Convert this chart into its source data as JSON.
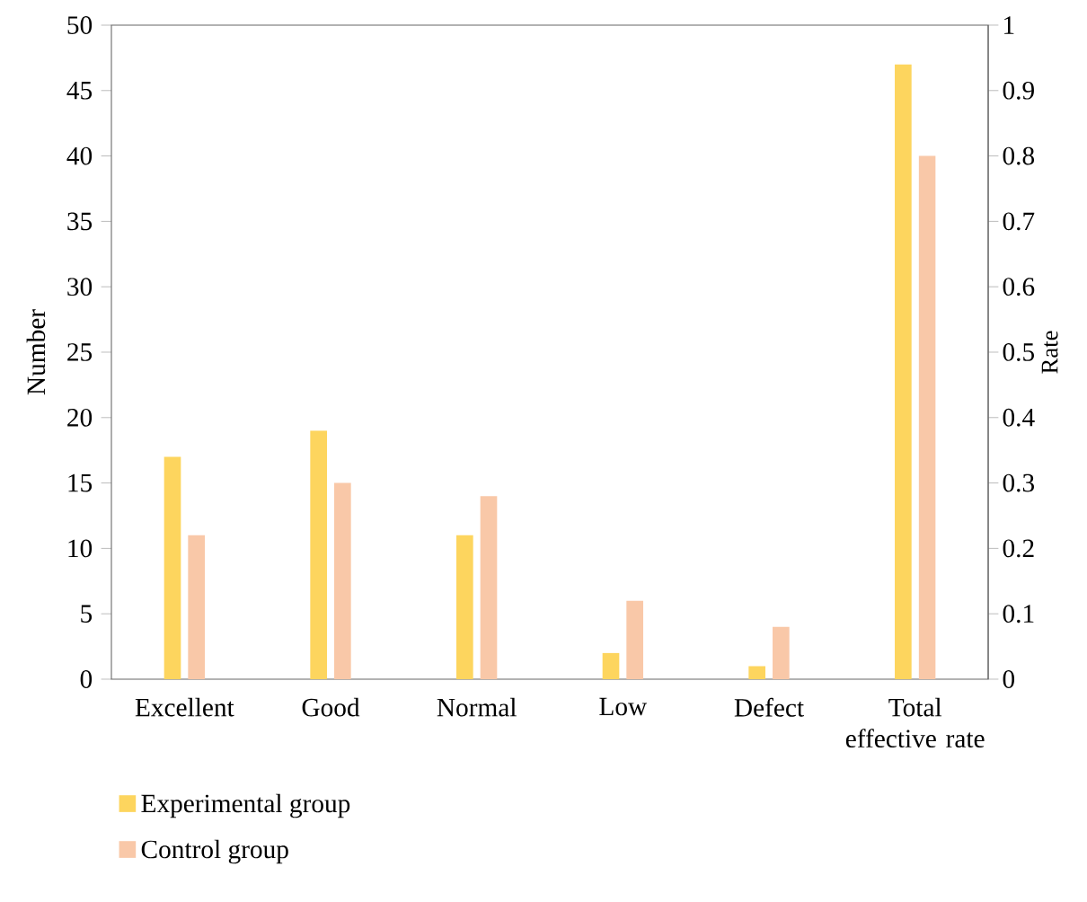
{
  "chart_data": {
    "type": "bar",
    "ylabel": "Number",
    "y2label": "Rate",
    "categories": [
      "Excellent",
      "Good",
      "Normal",
      "Low",
      "Defect",
      "Total effective rate"
    ],
    "series": [
      {
        "name": "Experimental group",
        "color": "#fdd55e",
        "values": [
          17,
          19,
          11,
          2,
          1,
          null
        ]
      },
      {
        "name": "Control group",
        "color": "#f9c8a8",
        "values": [
          11,
          15,
          14,
          6,
          4,
          null
        ]
      },
      {
        "color": "#fdd55e",
        "axis": "y2",
        "values": [
          null,
          null,
          null,
          null,
          null,
          0.94
        ]
      },
      {
        "color": "#f9c8a8",
        "axis": "y2",
        "values": [
          null,
          null,
          null,
          null,
          null,
          0.8
        ]
      }
    ],
    "ylim": [
      0,
      50
    ],
    "yticks": [
      0,
      5,
      10,
      15,
      20,
      25,
      30,
      35,
      40,
      45,
      50
    ],
    "y2lim": [
      0,
      1
    ],
    "y2ticks": [
      0,
      0.1,
      0.2,
      0.3,
      0.4,
      0.5,
      0.6,
      0.7,
      0.8,
      0.9,
      1
    ],
    "legend": "bottom"
  }
}
